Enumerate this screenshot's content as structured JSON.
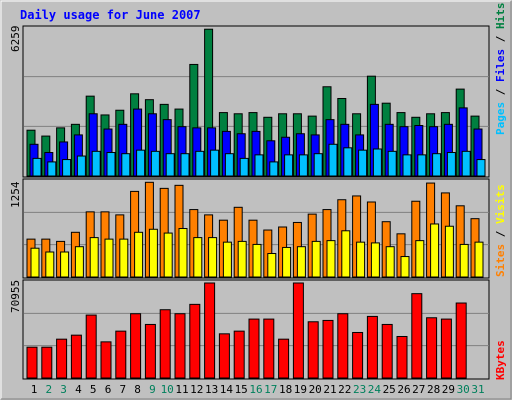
{
  "chart_data": {
    "type": "bar",
    "title": "Daily usage for June 2007",
    "categories": [
      "1",
      "2",
      "3",
      "4",
      "5",
      "6",
      "7",
      "8",
      "9",
      "10",
      "11",
      "12",
      "13",
      "14",
      "15",
      "16",
      "17",
      "18",
      "19",
      "20",
      "21",
      "22",
      "23",
      "24",
      "25",
      "26",
      "27",
      "28",
      "29",
      "30",
      "31"
    ],
    "weekend_days": [
      "2",
      "3",
      "9",
      "10",
      "16",
      "17",
      "23",
      "24",
      "30",
      "31"
    ],
    "panels": [
      {
        "id": "hits-panel",
        "max_label": "6259",
        "ylim": [
          0,
          6259
        ],
        "grid": true,
        "series": [
          {
            "name": "Hits",
            "color": "#008040",
            "values": [
              1950,
              1700,
              2050,
              2200,
              3400,
              2600,
              2800,
              3500,
              3250,
              3050,
              2850,
              4750,
              6250,
              2700,
              2650,
              2700,
              2500,
              2650,
              2650,
              2550,
              3800,
              3300,
              2650,
              4250,
              3100,
              2700,
              2500,
              2650,
              2700,
              3700,
              2550
            ]
          },
          {
            "name": "Files",
            "color": "#0000ff",
            "values": [
              1350,
              1000,
              1450,
              1750,
              2650,
              2000,
              2200,
              2850,
              2650,
              2400,
              2100,
              2050,
              2050,
              1900,
              1800,
              1900,
              1500,
              1650,
              1800,
              1750,
              2400,
              2200,
              1750,
              3050,
              2200,
              2100,
              2150,
              2100,
              2200,
              2900,
              2000
            ]
          },
          {
            "name": "Pages",
            "color": "#00c0ff",
            "values": [
              750,
              600,
              700,
              850,
              1050,
              1000,
              950,
              1100,
              1050,
              950,
              950,
              1050,
              1100,
              950,
              750,
              900,
              600,
              900,
              900,
              950,
              1350,
              1200,
              1100,
              1150,
              1050,
              900,
              900,
              950,
              1000,
              1050,
              700
            ]
          }
        ]
      },
      {
        "id": "visits-panel",
        "max_label": "1254",
        "ylim": [
          0,
          1254
        ],
        "grid": true,
        "series": [
          {
            "name": "Visits",
            "color": "#ff8000",
            "values": [
              500,
              500,
              470,
              590,
              860,
              860,
              820,
              1130,
              1250,
              1170,
              1210,
              890,
              820,
              750,
              920,
              750,
              620,
              660,
              720,
              830,
              890,
              1020,
              1070,
              990,
              730,
              570,
              1000,
              1240,
              1110,
              940,
              770
            ]
          },
          {
            "name": "Sites",
            "color": "#ffff00",
            "values": [
              380,
              330,
              330,
              400,
              520,
              500,
              500,
              590,
              630,
              580,
              640,
              520,
              520,
              460,
              470,
              430,
              310,
              390,
              400,
              470,
              480,
              610,
              460,
              450,
              400,
              270,
              480,
              700,
              670,
              430,
              460
            ]
          }
        ]
      },
      {
        "id": "kbytes-panel",
        "max_label": "70955",
        "ylim": [
          0,
          70955
        ],
        "grid": true,
        "series": [
          {
            "name": "KBytes",
            "color": "#ff0000",
            "values": [
              23000,
              23000,
              29000,
              32000,
              47000,
              27000,
              35000,
              48000,
              40000,
              51000,
              48000,
              55000,
              70955,
              33000,
              35000,
              44000,
              44000,
              29000,
              70955,
              42000,
              43000,
              48000,
              34000,
              46000,
              40000,
              31000,
              63000,
              45000,
              44000,
              56000,
              0
            ]
          }
        ]
      }
    ]
  },
  "legend": {
    "top_prefix": "Pages",
    "top_mid": "Files",
    "top_suffix": "Hits",
    "mid_prefix": "Sites",
    "mid_suffix": "Visits",
    "bottom": "KBytes",
    "separator": " / "
  },
  "colors": {
    "background": "#c0c0c0",
    "plot_area": "#c0c0c0",
    "title": "#0000ff",
    "weekday_label": "#000000",
    "weekend_label": "#00805c",
    "grid": "#808080",
    "bar_outline": "#000000"
  }
}
